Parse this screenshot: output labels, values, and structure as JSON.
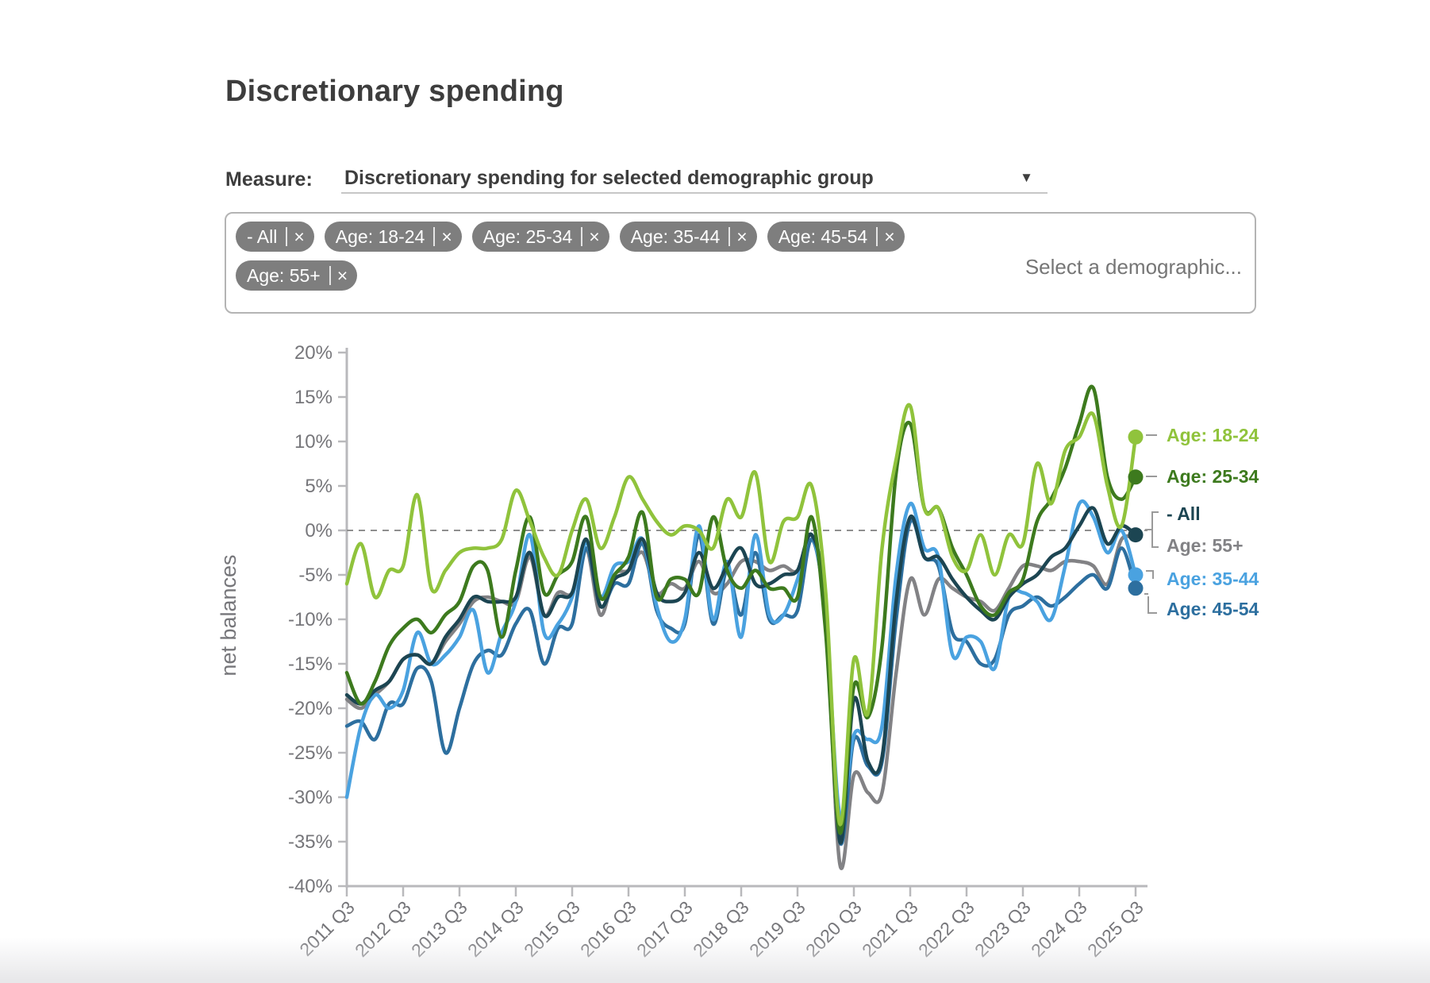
{
  "page": {
    "title": "Discretionary spending"
  },
  "measure": {
    "label": "Measure:",
    "value": "Discretionary spending for selected demographic group",
    "dropdown_icon": "▼"
  },
  "filters": {
    "chips": [
      "- All",
      "Age: 18-24",
      "Age: 25-34",
      "Age: 35-44",
      "Age: 45-54",
      "Age: 55+"
    ],
    "remove_icon": "×",
    "placeholder": "Select a demographic..."
  },
  "chart_data": {
    "type": "line",
    "title": "",
    "ylabel": "net balances",
    "ylim": [
      -40,
      20
    ],
    "ytick_step": 5,
    "y_ticks": [
      "20%",
      "15%",
      "10%",
      "5%",
      "0%",
      "-5%",
      "-10%",
      "-15%",
      "-20%",
      "-25%",
      "-30%",
      "-35%",
      "-40%"
    ],
    "x_labels": [
      "2011 Q3",
      "2012 Q3",
      "2013 Q3",
      "2014 Q3",
      "2015 Q3",
      "2016 Q3",
      "2017 Q3",
      "2018 Q3",
      "2019 Q3",
      "2020 Q3",
      "2021 Q3",
      "2022 Q3",
      "2023 Q3",
      "2024 Q3",
      "2025 Q3"
    ],
    "frequency": "quarterly",
    "grid": "zero-line-only",
    "zero_line": "dashed",
    "legend_position": "right",
    "series": [
      {
        "name": "Age: 18-24",
        "color": "#90c33c",
        "end_dot": true,
        "values": [
          -6,
          -1.5,
          -7.5,
          -4.5,
          -4,
          4,
          -6.5,
          -4.5,
          -2.5,
          -2,
          -2,
          -1,
          4.5,
          1,
          -3,
          -5,
          0,
          3.5,
          -2,
          1.5,
          6,
          3.5,
          1,
          -0.5,
          0.5,
          0,
          -2,
          3.5,
          1.5,
          6.5,
          -3.5,
          1,
          1.5,
          5,
          -7,
          -33,
          -14.5,
          -20.5,
          -2,
          8,
          14,
          2.5,
          2.5,
          -3,
          -4.5,
          -0.5,
          -5,
          -0.5,
          -1.5,
          7.5,
          3,
          9,
          10.5,
          13,
          5,
          0.5,
          10.5
        ]
      },
      {
        "name": "Age: 25-34",
        "color": "#3d7a1e",
        "end_dot": true,
        "values": [
          -16,
          -19.5,
          -17,
          -13,
          -11,
          -10,
          -11.5,
          -9.5,
          -8,
          -4,
          -4.5,
          -12,
          -4.5,
          1.5,
          -7,
          -5,
          -3.5,
          1.5,
          -7.5,
          -5,
          -3,
          2,
          -7.5,
          -5.5,
          -5.5,
          -7,
          1.5,
          -4.5,
          -6.5,
          -4.5,
          -6.5,
          -6.5,
          -7.5,
          1.5,
          -11.5,
          -34,
          -17.5,
          -21,
          -13,
          6.5,
          12,
          2.5,
          2.5,
          -2,
          -5,
          -8.5,
          -9.5,
          -7,
          -5.5,
          1,
          3.5,
          7,
          12,
          16,
          6,
          3.5,
          6
        ]
      },
      {
        "name": "- All",
        "color": "#1c4552",
        "end_dot": true,
        "values": [
          -18.5,
          -19.5,
          -18,
          -17,
          -14.5,
          -14,
          -15,
          -12,
          -10,
          -7.5,
          -8,
          -8,
          -7.5,
          -2.5,
          -9.5,
          -7.5,
          -7,
          -1,
          -8.5,
          -5.5,
          -4.5,
          -1,
          -7,
          -8,
          -7,
          -2.5,
          -6.5,
          -4,
          -2,
          -6,
          -6,
          -5,
          -4.5,
          -0.5,
          -8.5,
          -35,
          -19,
          -26,
          -25.5,
          -8,
          1.5,
          -3,
          -3,
          -5.5,
          -7.5,
          -9,
          -10,
          -7.5,
          -6,
          -5,
          -3,
          -2,
          0.5,
          2.5,
          -1.5,
          0.5,
          -0.5
        ]
      },
      {
        "name": "Age: 55+",
        "color": "#828285",
        "end_dot": false,
        "values": [
          -19,
          -20,
          -18.5,
          -17,
          -14.5,
          -14,
          -15,
          -12.5,
          -10.5,
          -8,
          -7.5,
          -8,
          -8,
          -3,
          -9.5,
          -7,
          -7,
          -2,
          -9.5,
          -5,
          -4.5,
          -2.5,
          -7,
          -6,
          -6.5,
          -3.5,
          -7,
          -6,
          -3.5,
          -3.5,
          -4.5,
          -4,
          -4.5,
          -0.5,
          -9,
          -37.5,
          -27.5,
          -29.5,
          -29.5,
          -16,
          -5.5,
          -9.5,
          -5.5,
          -6.5,
          -7.5,
          -8,
          -9,
          -6.5,
          -4,
          -4,
          -4.5,
          -3.5,
          -3.5,
          -4,
          -6,
          -1,
          -1
        ]
      },
      {
        "name": "Age: 35-44",
        "color": "#4aa2e0",
        "end_dot": true,
        "values": [
          -30,
          -22,
          -18.5,
          -20,
          -18,
          -11.5,
          -15,
          -14,
          -12,
          -9,
          -16,
          -11.5,
          -8,
          -0.5,
          -11.5,
          -10.5,
          -7.5,
          -1.5,
          -7.5,
          -4,
          -3.5,
          -1,
          -8.5,
          -12.5,
          -10,
          0.5,
          -10,
          -3.5,
          -12,
          -0.5,
          -9.5,
          -9.5,
          -5.5,
          -0.5,
          -9.5,
          -32,
          -23,
          -23.5,
          -22,
          -5,
          3,
          -2,
          -3,
          -14,
          -12,
          -12.5,
          -15.5,
          -7.5,
          -7,
          -8,
          -10,
          -4,
          3,
          1.5,
          -2.5,
          0,
          -5
        ]
      },
      {
        "name": "Age: 45-54",
        "color": "#2d6f9f",
        "end_dot": true,
        "values": [
          -22,
          -21.5,
          -23.5,
          -19.5,
          -19.5,
          -15.5,
          -17,
          -25,
          -20,
          -15,
          -13.5,
          -14,
          -10.5,
          -9,
          -15,
          -11,
          -10.5,
          -2,
          -8.5,
          -6,
          -6,
          -1.5,
          -9,
          -11,
          -10.5,
          -0.5,
          -10.5,
          -4.5,
          -9.5,
          -2.5,
          -10,
          -9.5,
          -9,
          -1,
          -10,
          -35,
          -23.5,
          -26.5,
          -26,
          -10,
          1,
          -3,
          -4,
          -11.5,
          -12.5,
          -15,
          -14.5,
          -9.5,
          -8.5,
          -7.5,
          -8.5,
          -7.5,
          -6,
          -5,
          -6.5,
          -2,
          -6.5
        ]
      }
    ]
  }
}
